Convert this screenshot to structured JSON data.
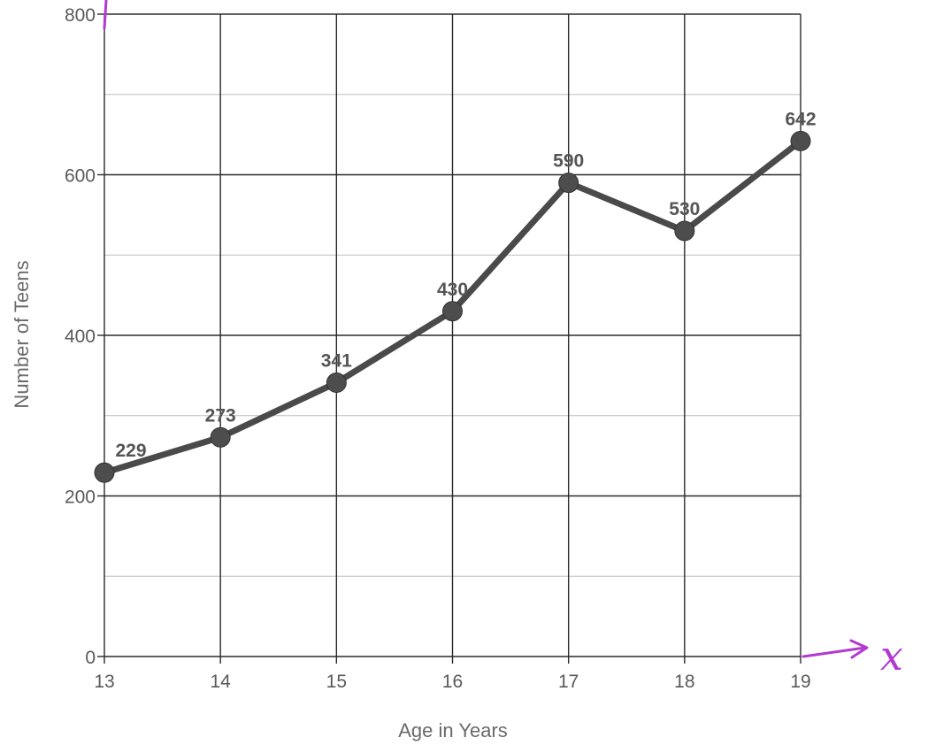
{
  "chart_data": {
    "type": "line",
    "title": "",
    "xlabel": "Age in Years",
    "ylabel": "Number of Teens",
    "x": [
      13,
      14,
      15,
      16,
      17,
      18,
      19
    ],
    "x_tick_labels": [
      "13",
      "14",
      "15",
      "16",
      "17",
      "18",
      "19"
    ],
    "y_tick_labels": [
      "0",
      "200",
      "400",
      "600",
      "800"
    ],
    "series": [
      {
        "values": [
          229,
          273,
          341,
          430,
          590,
          530,
          642
        ],
        "labels": [
          "229",
          "273",
          "341",
          "430",
          "590",
          "530",
          "642"
        ]
      }
    ],
    "xlim": [
      13,
      19
    ],
    "ylim": [
      0,
      800
    ],
    "y_major_step": 200,
    "y_minor_step": 100,
    "grid": true,
    "legend": "none",
    "colors": {
      "line": "#4a4a4a",
      "annotation": "#b13ad0"
    },
    "annotations": [
      {
        "text": "x"
      }
    ]
  }
}
